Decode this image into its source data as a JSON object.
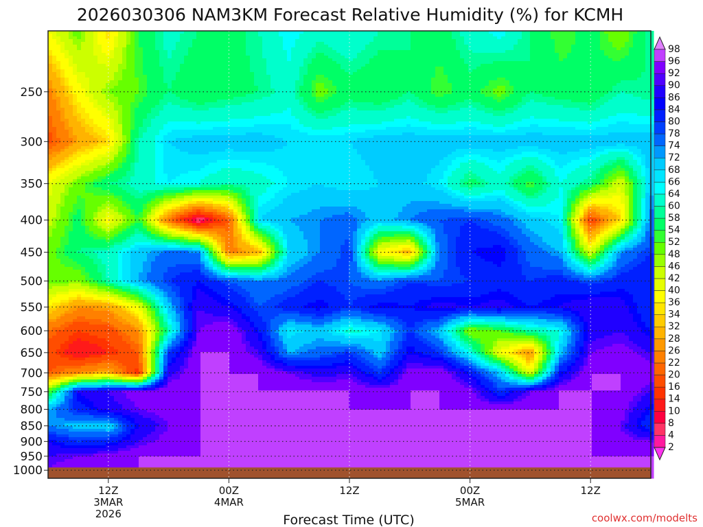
{
  "chart_data": {
    "type": "heatmap",
    "title": "2026030306 NAM3KM Forecast Relative Humidity (%) for KCMH",
    "xlabel": "Forecast Time (UTC)",
    "ylabel": "",
    "credit": "coolwx.com/modelts",
    "y_scale": "log-pressure",
    "ylim": [
      1030,
      200
    ],
    "xlim_hours": [
      6,
      66
    ],
    "grid": true,
    "y_ticks": [
      250,
      300,
      350,
      400,
      450,
      500,
      550,
      600,
      650,
      700,
      750,
      800,
      850,
      900,
      950,
      1000
    ],
    "x_ticks": [
      {
        "hour": 12,
        "lines": [
          "12Z",
          "3MAR",
          "2026"
        ]
      },
      {
        "hour": 24,
        "lines": [
          "00Z",
          "4MAR"
        ]
      },
      {
        "hour": 36,
        "lines": [
          "12Z"
        ]
      },
      {
        "hour": 48,
        "lines": [
          "00Z",
          "5MAR"
        ]
      },
      {
        "hour": 60,
        "lines": [
          "12Z"
        ]
      }
    ],
    "ground_pressure": 990,
    "colorbar": {
      "levels": [
        2,
        4,
        8,
        10,
        14,
        16,
        20,
        22,
        26,
        28,
        32,
        34,
        36,
        40,
        42,
        46,
        48,
        52,
        54,
        58,
        60,
        64,
        66,
        68,
        72,
        74,
        78,
        80,
        84,
        86,
        90,
        92,
        96,
        98
      ],
      "colors": [
        "#ff33ee",
        "#ff1a9e",
        "#ff3366",
        "#ff0040",
        "#ff1a1a",
        "#ff3300",
        "#ff4d00",
        "#ff6600",
        "#ff8000",
        "#ff9900",
        "#ffb300",
        "#ffcc00",
        "#ffe600",
        "#ffff00",
        "#e6ff00",
        "#ccff00",
        "#99ff00",
        "#66ff00",
        "#33ff33",
        "#00ff66",
        "#00ff99",
        "#00ffcc",
        "#00ffff",
        "#00e6ff",
        "#00ccff",
        "#0099ff",
        "#0066ff",
        "#0040ff",
        "#0020ff",
        "#0000ff",
        "#2000ff",
        "#5000ff",
        "#8000ff",
        "#c040ff",
        "#e080ff"
      ]
    },
    "pressure_levels": [
      1000,
      950,
      900,
      850,
      800,
      750,
      700,
      650,
      600,
      550,
      500,
      450,
      400,
      350,
      300,
      250,
      200
    ],
    "time_hours": [
      6,
      9,
      12,
      15,
      18,
      21,
      24,
      27,
      30,
      33,
      36,
      39,
      42,
      45,
      48,
      51,
      54,
      57,
      60,
      63,
      66
    ],
    "rh_values": [
      [
        92,
        96,
        96,
        96,
        96,
        96,
        96,
        96,
        96,
        96,
        96,
        96,
        96,
        96,
        96,
        96,
        96,
        96,
        96,
        96,
        96
      ],
      [
        90,
        92,
        94,
        96,
        96,
        96,
        96,
        96,
        96,
        96,
        96,
        96,
        96,
        96,
        96,
        96,
        96,
        96,
        96,
        96,
        96
      ],
      [
        86,
        80,
        82,
        90,
        94,
        96,
        96,
        96,
        96,
        96,
        96,
        96,
        96,
        96,
        96,
        96,
        96,
        96,
        96,
        94,
        92
      ],
      [
        74,
        70,
        68,
        86,
        92,
        96,
        96,
        96,
        96,
        96,
        96,
        96,
        96,
        96,
        96,
        96,
        96,
        96,
        96,
        92,
        80
      ],
      [
        72,
        82,
        88,
        92,
        94,
        96,
        96,
        96,
        96,
        96,
        96,
        96,
        96,
        96,
        96,
        96,
        96,
        96,
        96,
        94,
        84
      ],
      [
        50,
        86,
        90,
        94,
        96,
        96,
        96,
        96,
        96,
        96,
        96,
        94,
        96,
        96,
        94,
        80,
        92,
        96,
        96,
        96,
        90
      ],
      [
        20,
        26,
        30,
        14,
        88,
        96,
        96,
        96,
        92,
        88,
        90,
        80,
        94,
        96,
        84,
        70,
        40,
        84,
        96,
        96,
        94
      ],
      [
        18,
        10,
        14,
        20,
        80,
        96,
        96,
        90,
        72,
        76,
        80,
        70,
        86,
        80,
        64,
        40,
        26,
        70,
        92,
        94,
        90
      ],
      [
        22,
        16,
        18,
        26,
        60,
        92,
        96,
        84,
        66,
        70,
        62,
        66,
        80,
        70,
        48,
        52,
        60,
        64,
        88,
        90,
        84
      ],
      [
        36,
        26,
        28,
        40,
        70,
        90,
        86,
        78,
        82,
        86,
        80,
        86,
        84,
        88,
        86,
        88,
        84,
        86,
        90,
        88,
        80
      ],
      [
        50,
        48,
        60,
        72,
        80,
        84,
        78,
        74,
        76,
        80,
        78,
        74,
        80,
        78,
        80,
        82,
        80,
        82,
        78,
        82,
        84
      ],
      [
        50,
        58,
        62,
        70,
        76,
        74,
        24,
        30,
        68,
        74,
        80,
        38,
        30,
        76,
        84,
        86,
        76,
        72,
        42,
        74,
        80
      ],
      [
        44,
        56,
        38,
        54,
        22,
        4,
        20,
        68,
        72,
        74,
        76,
        70,
        74,
        78,
        80,
        76,
        70,
        66,
        16,
        34,
        76
      ],
      [
        40,
        50,
        58,
        62,
        66,
        64,
        60,
        62,
        66,
        68,
        66,
        68,
        70,
        66,
        56,
        62,
        52,
        64,
        58,
        42,
        70
      ],
      [
        18,
        28,
        34,
        60,
        68,
        70,
        70,
        70,
        68,
        68,
        68,
        70,
        70,
        70,
        70,
        70,
        70,
        70,
        70,
        70,
        70
      ],
      [
        24,
        38,
        48,
        52,
        58,
        54,
        56,
        58,
        62,
        50,
        56,
        54,
        58,
        52,
        56,
        50,
        58,
        56,
        54,
        60,
        58
      ],
      [
        40,
        50,
        34,
        54,
        62,
        58,
        56,
        60,
        66,
        62,
        64,
        60,
        58,
        56,
        62,
        66,
        58,
        52,
        56,
        48,
        60
      ]
    ]
  }
}
